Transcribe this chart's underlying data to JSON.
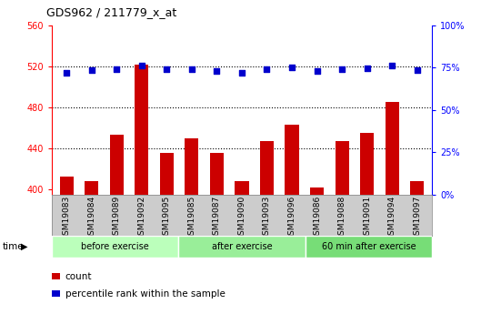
{
  "title": "GDS962 / 211779_x_at",
  "categories": [
    "GSM19083",
    "GSM19084",
    "GSM19089",
    "GSM19092",
    "GSM19095",
    "GSM19085",
    "GSM19087",
    "GSM19090",
    "GSM19093",
    "GSM19096",
    "GSM19086",
    "GSM19088",
    "GSM19091",
    "GSM19094",
    "GSM19097"
  ],
  "bar_values": [
    413,
    408,
    453,
    522,
    436,
    450,
    436,
    408,
    447,
    463,
    402,
    447,
    455,
    485,
    408
  ],
  "percentile_values": [
    514,
    516,
    517,
    521,
    517,
    517,
    515,
    514,
    517,
    519,
    515,
    517,
    518,
    521,
    516
  ],
  "bar_color": "#cc0000",
  "dot_color": "#0000cc",
  "ylim": [
    395,
    560
  ],
  "yticks_left": [
    400,
    440,
    480,
    520,
    560
  ],
  "right_ticks_vals": [
    395,
    436.25,
    477.5,
    518.75,
    560
  ],
  "right_ticks_labels": [
    "0%",
    "25%",
    "50%",
    "75%",
    "100%"
  ],
  "group_labels": [
    "before exercise",
    "after exercise",
    "60 min after exercise"
  ],
  "group_colors": [
    "#bbffbb",
    "#99ee99",
    "#77dd77"
  ],
  "group_sizes": [
    5,
    5,
    5
  ],
  "time_label": "time",
  "legend_count": "count",
  "legend_pct": "percentile rank within the sample",
  "dotted_lines": [
    440,
    480,
    520
  ],
  "xtick_bg": "#cccccc"
}
